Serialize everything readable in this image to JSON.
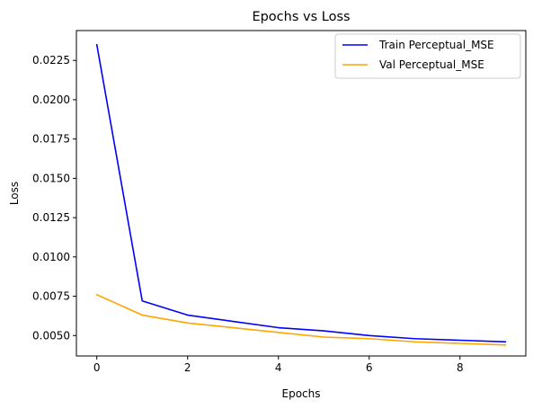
{
  "chart_data": {
    "type": "line",
    "title": "Epochs vs Loss",
    "xlabel": "Epochs",
    "ylabel": "Loss",
    "xlim": [
      -0.45,
      9.45
    ],
    "ylim": [
      0.0037,
      0.0244
    ],
    "x_ticks": [
      0,
      2,
      4,
      6,
      8
    ],
    "x_tick_labels": [
      "0",
      "2",
      "4",
      "6",
      "8"
    ],
    "y_ticks": [
      0.005,
      0.0075,
      0.01,
      0.0125,
      0.015,
      0.0175,
      0.02,
      0.0225
    ],
    "y_tick_labels": [
      "0.0050",
      "0.0075",
      "0.0100",
      "0.0125",
      "0.0150",
      "0.0175",
      "0.0200",
      "0.0225"
    ],
    "grid": false,
    "legend_position": "top-right",
    "x": [
      0,
      1,
      2,
      3,
      4,
      5,
      6,
      7,
      8,
      9
    ],
    "series": [
      {
        "name": "Train Perceptual_MSE",
        "color": "#0000ff",
        "values": [
          0.0235,
          0.0072,
          0.0063,
          0.0059,
          0.0055,
          0.0053,
          0.005,
          0.0048,
          0.0047,
          0.0046
        ]
      },
      {
        "name": "Val Perceptual_MSE",
        "color": "#ffa500",
        "values": [
          0.0076,
          0.0063,
          0.0058,
          0.0055,
          0.0052,
          0.0049,
          0.0048,
          0.0046,
          0.0045,
          0.0044
        ]
      }
    ]
  }
}
